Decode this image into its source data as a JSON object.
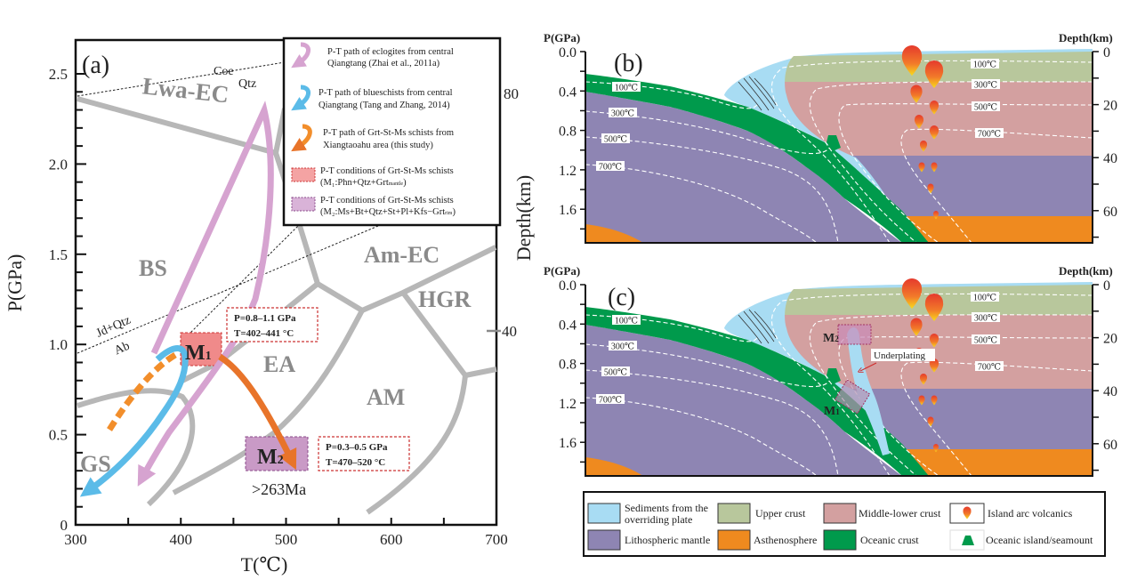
{
  "panel_a": {
    "label": "(a)",
    "x_axis": {
      "title": "T(℃)",
      "ticks": [
        "300",
        "400",
        "500",
        "600",
        "700"
      ]
    },
    "y_axis": {
      "title": "P(GPa)",
      "ticks": [
        "0",
        "0.5",
        "1.0",
        "1.5",
        "2.0",
        "2.5"
      ]
    },
    "right_ticks": [
      "80",
      "40"
    ],
    "fields": {
      "lwa_ec": "Lwa-EC",
      "bs": "BS",
      "gs": "GS",
      "ea": "EA",
      "am": "AM",
      "am_ec": "Am-EC",
      "hgr": "HGR"
    },
    "reactions": {
      "coe": "Coe",
      "qtz": "Qtz",
      "jd_qtz": "Jd+Qtz",
      "ab": "Ab"
    },
    "m1": {
      "main": "M",
      "sub": "1"
    },
    "m2": {
      "main": "M",
      "sub": "2"
    },
    "age": ">263Ma",
    "m1_conditions": [
      "P=0.8–1.1 GPa",
      "T=402–441 °C"
    ],
    "m2_conditions": [
      "P=0.3–0.5 GPa",
      "T=470–520 °C"
    ],
    "legend": [
      {
        "lines": [
          "P-T path of eclogites from central",
          "Qiangtang (Zhai et al., 2011a)"
        ],
        "color": "#d6a3d0"
      },
      {
        "lines": [
          "P-T path of blueschists from  central",
          "Qiangtang (Tang and Zhang, 2014)"
        ],
        "color": "#5bbbe8"
      },
      {
        "lines": [
          "P-T path of Grt-St-Ms schists from",
          "Xiangtaoahu area (this study)"
        ],
        "color": "#f28e2b"
      },
      {
        "lines": [
          "P-T conditions of Grt-St-Ms schists",
          "(M₁:Phn+Qtz+Grt",
          "mantle",
          ")"
        ],
        "color": "#f4a3a3"
      },
      {
        "lines": [
          "P-T conditions of Grt-St-Ms schists",
          "(M₂:Ms+Bt+Qtz+St+Pl+Kfs−Grt",
          "rim",
          ")"
        ],
        "color": "#d9b3d8"
      }
    ]
  },
  "panel_b": {
    "label": "(b)",
    "left_title": "P(GPa)",
    "right_title": "Depth(km)",
    "left_ticks": [
      "0.0",
      "0.4",
      "0.8",
      "1.2",
      "1.6"
    ],
    "right_ticks": [
      "0",
      "20",
      "40",
      "60"
    ],
    "isotherms_slab": [
      "100℃",
      "300℃",
      "500℃",
      "700℃"
    ],
    "isotherms_arc": [
      "100℃",
      "300℃",
      "500℃",
      "700℃"
    ]
  },
  "panel_c": {
    "label": "(c)",
    "left_title": "P(GPa)",
    "right_title": "Depth(km)",
    "left_ticks": [
      "0.0",
      "0.4",
      "0.8",
      "1.2",
      "1.6"
    ],
    "right_ticks": [
      "0",
      "20",
      "40",
      "60"
    ],
    "isotherms_slab": [
      "100℃",
      "300℃",
      "500℃",
      "700℃"
    ],
    "isotherms_arc": [
      "100℃",
      "300℃",
      "500℃",
      "700℃"
    ],
    "m1": {
      "main": "M",
      "sub": "1"
    },
    "m2": {
      "main": "M",
      "sub": "2"
    },
    "underplating": "Underplating"
  },
  "shared_axis_title": "Depth(km)",
  "legend": {
    "items": [
      {
        "lines": [
          "Sediments from the",
          "overriding plate"
        ],
        "color": "#a8dcf3"
      },
      {
        "lines": [
          "Upper crust"
        ],
        "color": "#b8c79c"
      },
      {
        "lines": [
          "Middle-lower crust"
        ],
        "color": "#d3a0a0"
      },
      {
        "lines": [
          "Island arc volcanics"
        ],
        "icon": "volcanic-drop-icon"
      },
      {
        "lines": [
          "Lithospheric mantle"
        ],
        "color": "#8e85b3"
      },
      {
        "lines": [
          "Asthenosphere"
        ],
        "color": "#ef8a1f"
      },
      {
        "lines": [
          "Oceanic crust"
        ],
        "color": "#009a4c"
      },
      {
        "lines": [
          "Oceanic island/seamount"
        ],
        "icon": "seamount-icon"
      }
    ]
  },
  "colors": {
    "sediment": "#a8dcf3",
    "upper_crust": "#b8c79c",
    "middle_lower_crust": "#d3a0a0",
    "lithospheric_mantle": "#8e85b3",
    "asthenosphere": "#ef8a1f",
    "oceanic_crust": "#009a4c",
    "phase_boundary": "#b7b7b7",
    "eclogite_path": "#d6a3d0",
    "blueschist_path": "#5bbbe8",
    "schist_path": "#f28e2b"
  }
}
